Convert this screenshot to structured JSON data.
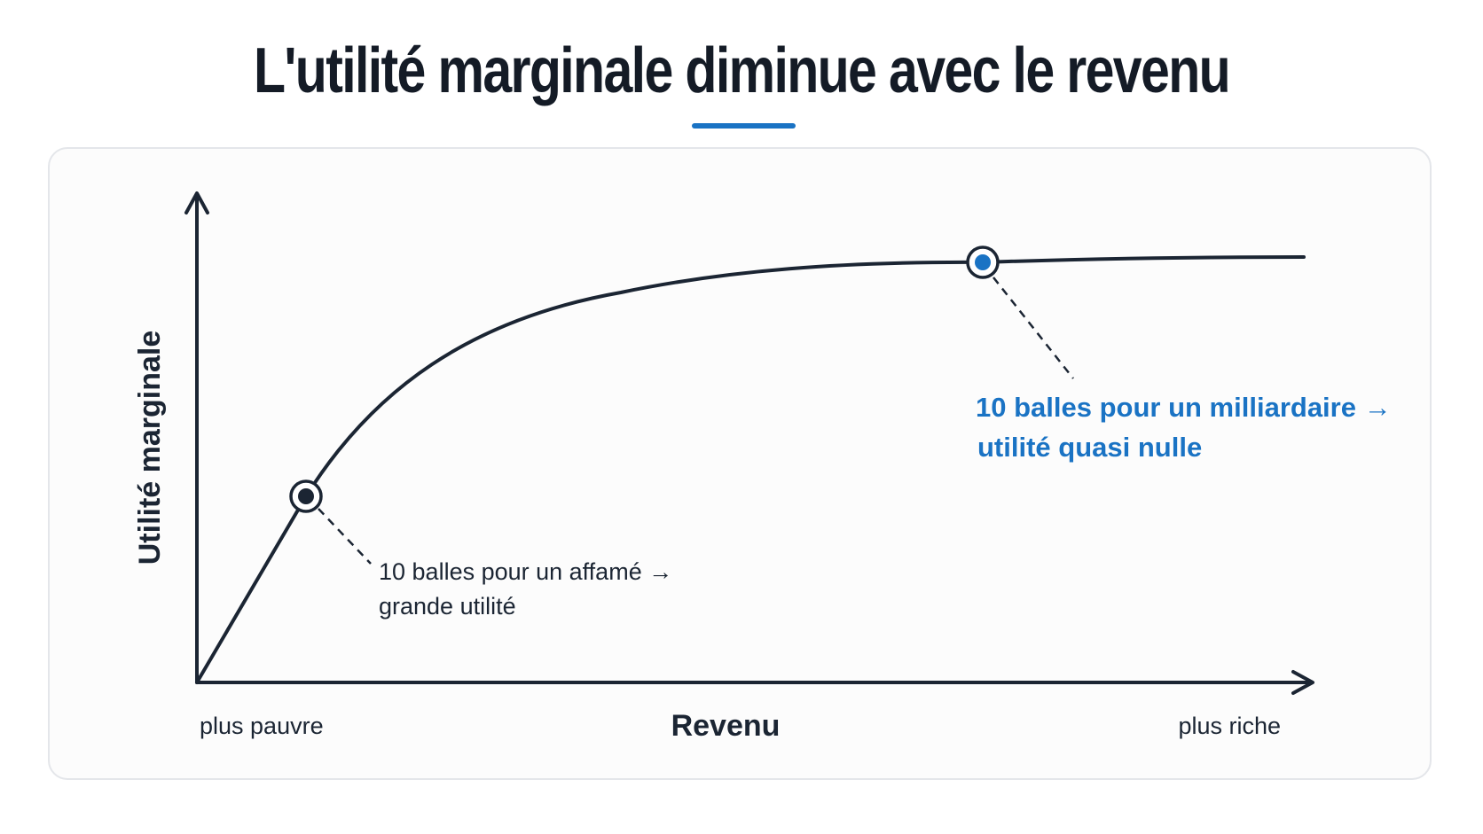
{
  "title": "L'utilité marginale diminue avec le revenu",
  "colors": {
    "accent": "#1a73c4",
    "ink": "#1b2533",
    "card_border": "#e4e6ea",
    "card_background": "#fcfcfc"
  },
  "diagram": {
    "y_axis_label": "Utilité marginale",
    "x_axis_label": "Revenu",
    "x_left_label": "plus pauvre",
    "x_right_label": "plus riche",
    "curve": "concave, croissante puis plateau",
    "point_low": {
      "marker": "dark",
      "annotation_line1": "10 balles pour un affamé →",
      "annotation_line2": "grande utilité"
    },
    "point_high": {
      "marker": "blue",
      "annotation_line1": "10 balles pour un milliardaire →",
      "annotation_line2": "utilité quasi nulle"
    }
  }
}
